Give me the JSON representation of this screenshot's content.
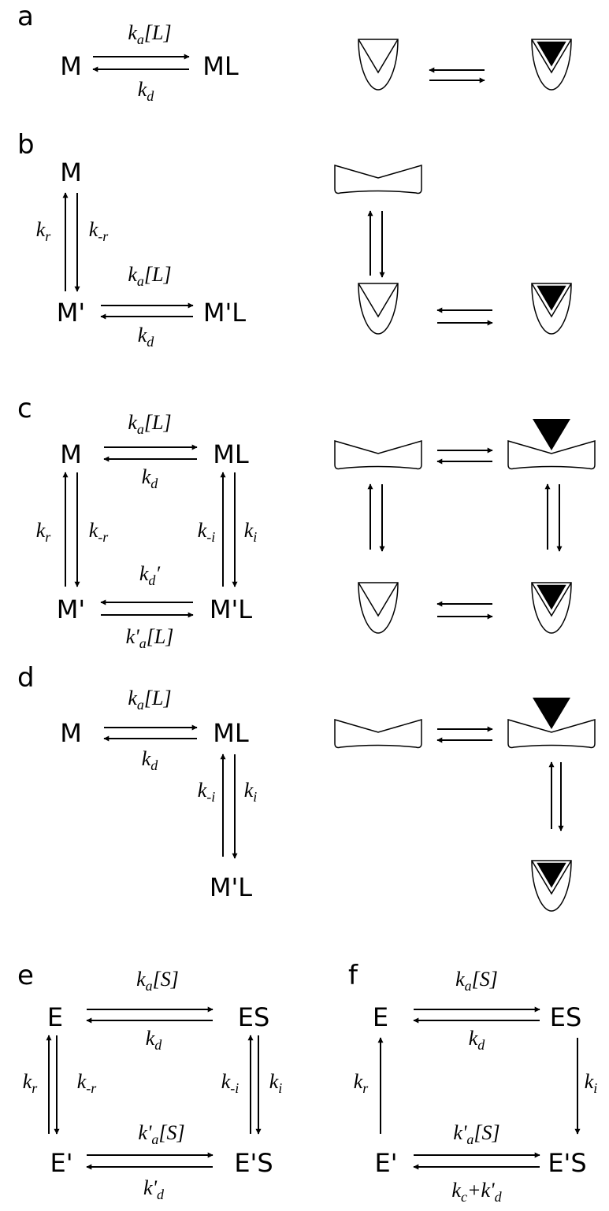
{
  "panels": [
    {
      "label": "a",
      "nodes": [
        "M",
        "ML"
      ],
      "rates": [
        {
          "parts": [
            {
              "text": "k"
            },
            {
              "text": "a",
              "sub": true
            },
            {
              "text": "[L]"
            }
          ]
        },
        {
          "parts": [
            {
              "text": "k"
            },
            {
              "text": "d",
              "sub": true
            }
          ]
        }
      ]
    },
    {
      "label": "b",
      "nodes": [
        "M",
        "M'",
        "M'L"
      ],
      "rates": [
        {
          "parts": [
            {
              "text": "k"
            },
            {
              "text": "r",
              "sub": true
            }
          ]
        },
        {
          "parts": [
            {
              "text": "k"
            },
            {
              "text": "-r",
              "sub": true
            }
          ]
        },
        {
          "parts": [
            {
              "text": "k"
            },
            {
              "text": "a",
              "sub": true
            },
            {
              "text": "[L]"
            }
          ]
        },
        {
          "parts": [
            {
              "text": "k"
            },
            {
              "text": "d",
              "sub": true
            }
          ]
        }
      ]
    },
    {
      "label": "c",
      "nodes": [
        "M",
        "ML",
        "M'",
        "M'L"
      ],
      "rates": [
        {
          "parts": [
            {
              "text": "k"
            },
            {
              "text": "a",
              "sub": true
            },
            {
              "text": "[L]"
            }
          ]
        },
        {
          "parts": [
            {
              "text": "k"
            },
            {
              "text": "d",
              "sub": true
            }
          ]
        },
        {
          "parts": [
            {
              "text": "k"
            },
            {
              "text": "r",
              "sub": true
            }
          ]
        },
        {
          "parts": [
            {
              "text": "k"
            },
            {
              "text": "-r",
              "sub": true
            }
          ]
        },
        {
          "parts": [
            {
              "text": "k"
            },
            {
              "text": "-i",
              "sub": true
            }
          ]
        },
        {
          "parts": [
            {
              "text": "k"
            },
            {
              "text": "i",
              "sub": true
            }
          ]
        },
        {
          "parts": [
            {
              "text": "k"
            },
            {
              "text": "d",
              "sub": true
            },
            {
              "text": "′"
            }
          ]
        },
        {
          "parts": [
            {
              "text": "k'"
            },
            {
              "text": "a",
              "sub": true
            },
            {
              "text": "[L]"
            }
          ]
        }
      ]
    },
    {
      "label": "d",
      "nodes": [
        "M",
        "ML",
        "M'L"
      ],
      "rates": [
        {
          "parts": [
            {
              "text": "k"
            },
            {
              "text": "a",
              "sub": true
            },
            {
              "text": "[L]"
            }
          ]
        },
        {
          "parts": [
            {
              "text": "k"
            },
            {
              "text": "d",
              "sub": true
            }
          ]
        },
        {
          "parts": [
            {
              "text": "k"
            },
            {
              "text": "-i",
              "sub": true
            }
          ]
        },
        {
          "parts": [
            {
              "text": "k"
            },
            {
              "text": "i",
              "sub": true
            }
          ]
        }
      ]
    },
    {
      "label": "e",
      "nodes": [
        "E",
        "ES",
        "E'",
        "E'S"
      ],
      "rates": [
        {
          "parts": [
            {
              "text": "k"
            },
            {
              "text": "a",
              "sub": true
            },
            {
              "text": "[S]"
            }
          ]
        },
        {
          "parts": [
            {
              "text": "k"
            },
            {
              "text": "d",
              "sub": true
            }
          ]
        },
        {
          "parts": [
            {
              "text": "k"
            },
            {
              "text": "r",
              "sub": true
            }
          ]
        },
        {
          "parts": [
            {
              "text": "k"
            },
            {
              "text": "-r",
              "sub": true
            }
          ]
        },
        {
          "parts": [
            {
              "text": "k"
            },
            {
              "text": "-i",
              "sub": true
            }
          ]
        },
        {
          "parts": [
            {
              "text": "k"
            },
            {
              "text": "i",
              "sub": true
            }
          ]
        },
        {
          "parts": [
            {
              "text": "k'"
            },
            {
              "text": "a",
              "sub": true
            },
            {
              "text": "[S]"
            }
          ]
        },
        {
          "parts": [
            {
              "text": "k'"
            },
            {
              "text": "d",
              "sub": true
            }
          ]
        }
      ]
    },
    {
      "label": "f",
      "nodes": [
        "E",
        "ES",
        "E'",
        "E'S"
      ],
      "rates": [
        {
          "parts": [
            {
              "text": "k"
            },
            {
              "text": "a",
              "sub": true
            },
            {
              "text": "[S]"
            }
          ]
        },
        {
          "parts": [
            {
              "text": "k"
            },
            {
              "text": "d",
              "sub": true
            }
          ]
        },
        {
          "parts": [
            {
              "text": "k"
            },
            {
              "text": "r",
              "sub": true
            }
          ]
        },
        {
          "parts": [
            {
              "text": "k"
            },
            {
              "text": "i",
              "sub": true
            }
          ]
        },
        {
          "parts": [
            {
              "text": "k'"
            },
            {
              "text": "a",
              "sub": true
            },
            {
              "text": "[S]"
            }
          ]
        },
        {
          "parts": [
            {
              "text": "k"
            },
            {
              "text": "c",
              "sub": true
            },
            {
              "text": "+k'"
            },
            {
              "text": "d",
              "sub": true
            }
          ]
        }
      ]
    }
  ]
}
